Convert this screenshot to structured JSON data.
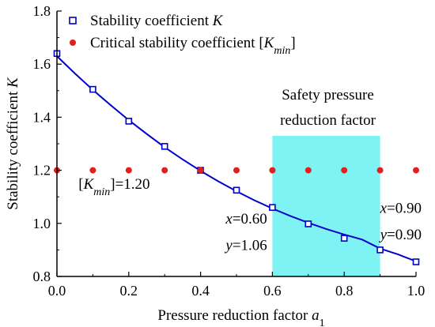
{
  "chart_data": {
    "type": "scatter",
    "xlabel_main": "Pressure reduction factor ",
    "xlabel_var": "a",
    "xlabel_sub": "1",
    "ylabel_main": "Stability coefficient ",
    "ylabel_var": "K",
    "xlim": [
      0.0,
      1.0
    ],
    "ylim": [
      0.8,
      1.8
    ],
    "x_ticks": [
      "0.0",
      "0.2",
      "0.4",
      "0.6",
      "0.8",
      "1.0"
    ],
    "y_ticks": [
      "0.8",
      "1.0",
      "1.2",
      "1.4",
      "1.6",
      "1.8"
    ],
    "legend_position": "top-left",
    "series": [
      {
        "name": "Stability coefficient K",
        "marker": "open-square",
        "color": "#0000cc",
        "x": [
          0.0,
          0.1,
          0.2,
          0.3,
          0.4,
          0.5,
          0.6,
          0.7,
          0.8,
          0.9,
          1.0
        ],
        "y": [
          1.64,
          1.505,
          1.385,
          1.29,
          1.2,
          1.125,
          1.06,
          0.998,
          0.944,
          0.9,
          0.855
        ]
      },
      {
        "name": "Critical stability coefficient [Kmin]",
        "marker": "filled-circle",
        "color": "#e02020",
        "x": [
          0.0,
          0.1,
          0.2,
          0.3,
          0.4,
          0.5,
          0.6,
          0.7,
          0.8,
          0.9,
          1.0
        ],
        "y": [
          1.2,
          1.2,
          1.2,
          1.2,
          1.2,
          1.2,
          1.2,
          1.2,
          1.2,
          1.2,
          1.2
        ]
      }
    ],
    "fit_curve": {
      "color": "#0000cc",
      "x": [
        0.0,
        0.05,
        0.1,
        0.15,
        0.2,
        0.25,
        0.3,
        0.35,
        0.4,
        0.45,
        0.5,
        0.55,
        0.6,
        0.65,
        0.7,
        0.75,
        0.8,
        0.85,
        0.9,
        0.95,
        1.0
      ],
      "y": [
        1.63,
        1.565,
        1.503,
        1.445,
        1.389,
        1.337,
        1.287,
        1.241,
        1.198,
        1.158,
        1.121,
        1.087,
        1.056,
        1.028,
        1.002,
        0.979,
        0.958,
        0.939,
        0.905,
        0.883,
        0.857
      ]
    },
    "shaded_region": {
      "x_range": [
        0.6,
        0.9
      ],
      "y_range": [
        0.8,
        1.33
      ],
      "color": "#7ff3f3",
      "label_lines": [
        "Safety pressure",
        "reduction factor"
      ]
    },
    "legend": [
      {
        "text": "Stability coefficient ",
        "var": "K",
        "sub": "",
        "tail": "",
        "marker": "open-square",
        "color": "#0000cc"
      },
      {
        "text": "Critical stability coefficient [",
        "var": "K",
        "sub": "min",
        "tail": "]",
        "marker": "filled-circle",
        "color": "#e02020"
      }
    ],
    "annotations": [
      {
        "id": "kmin",
        "bracket_open": "[",
        "var": "K",
        "sub": "min",
        "rest": "]=1.20",
        "x": 0.06,
        "y": 1.13
      },
      {
        "id": "p060x",
        "var": "x",
        "rest": "=0.60",
        "x": 0.47,
        "y": 1.0
      },
      {
        "id": "p060y",
        "var": "y",
        "rest": "=1.06",
        "x": 0.47,
        "y": 0.9
      },
      {
        "id": "p090x",
        "var": "x",
        "rest": "=0.90",
        "x": 0.9,
        "y": 1.04
      },
      {
        "id": "p090y",
        "var": "y",
        "rest": "=0.90",
        "x": 0.9,
        "y": 0.94
      }
    ]
  }
}
